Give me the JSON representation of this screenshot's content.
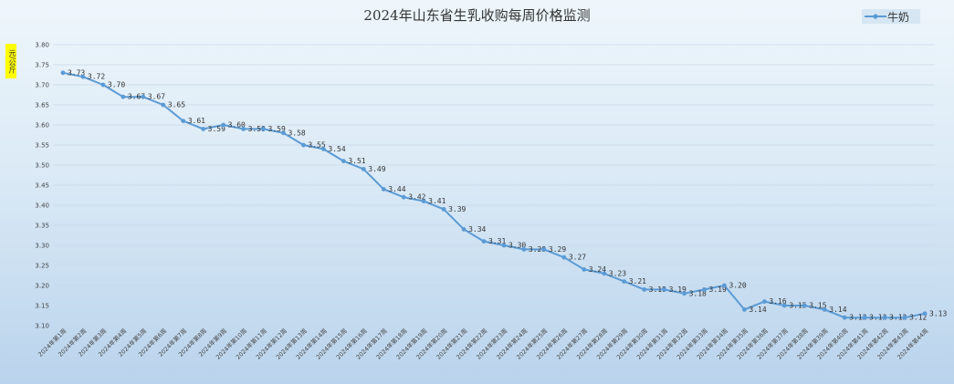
{
  "chart_data": {
    "type": "line",
    "title": "2024年山东省生乳收购每周价格监测",
    "ylabel": "元/公斤",
    "xlabel": "",
    "ylim": [
      3.1,
      3.8
    ],
    "yticks": [
      "3.10",
      "3.15",
      "3.20",
      "3.25",
      "3.30",
      "3.35",
      "3.40",
      "3.45",
      "3.50",
      "3.55",
      "3.60",
      "3.65",
      "3.70",
      "3.75",
      "3.80"
    ],
    "grid": true,
    "legend": "top-right",
    "categories": [
      "2024年第1周",
      "2024年第2周",
      "2024年第3周",
      "2024年第4周",
      "2024年第5周",
      "2024年第6周",
      "2024年第7周",
      "2024年第8周",
      "2024年第9周",
      "2024年第10周",
      "2024年第11周",
      "2024年第12周",
      "2024年第13周",
      "2024年第14周",
      "2024年第15周",
      "2024年第16周",
      "2024年第17周",
      "2024年第18周",
      "2024年第19周",
      "2024年第20周",
      "2024年第21周",
      "2024年第22周",
      "2024年第23周",
      "2024年第24周",
      "2024年第25周",
      "2024年第26周",
      "2024年第27周",
      "2024年第28周",
      "2024年第29周",
      "2024年第30周",
      "2024年第31周",
      "2024年第32周",
      "2024年第33周",
      "2024年第34周",
      "2024年第35周",
      "2024年第36周",
      "2024年第37周",
      "2024年第38周",
      "2024年第39周",
      "2024年第40周",
      "2024年第41周",
      "2024年第42周",
      "2024年第43周",
      "2024年第44周"
    ],
    "series": [
      {
        "name": "牛奶",
        "color": "#5b9bd5",
        "values": [
          3.73,
          3.72,
          3.7,
          3.67,
          3.67,
          3.65,
          3.61,
          3.59,
          3.6,
          3.59,
          3.59,
          3.58,
          3.55,
          3.54,
          3.51,
          3.49,
          3.44,
          3.42,
          3.41,
          3.39,
          3.34,
          3.31,
          3.3,
          3.29,
          3.29,
          3.27,
          3.24,
          3.23,
          3.21,
          3.19,
          3.19,
          3.18,
          3.19,
          3.2,
          3.14,
          3.16,
          3.15,
          3.15,
          3.14,
          3.12,
          3.12,
          3.12,
          3.12,
          3.13
        ]
      }
    ]
  }
}
